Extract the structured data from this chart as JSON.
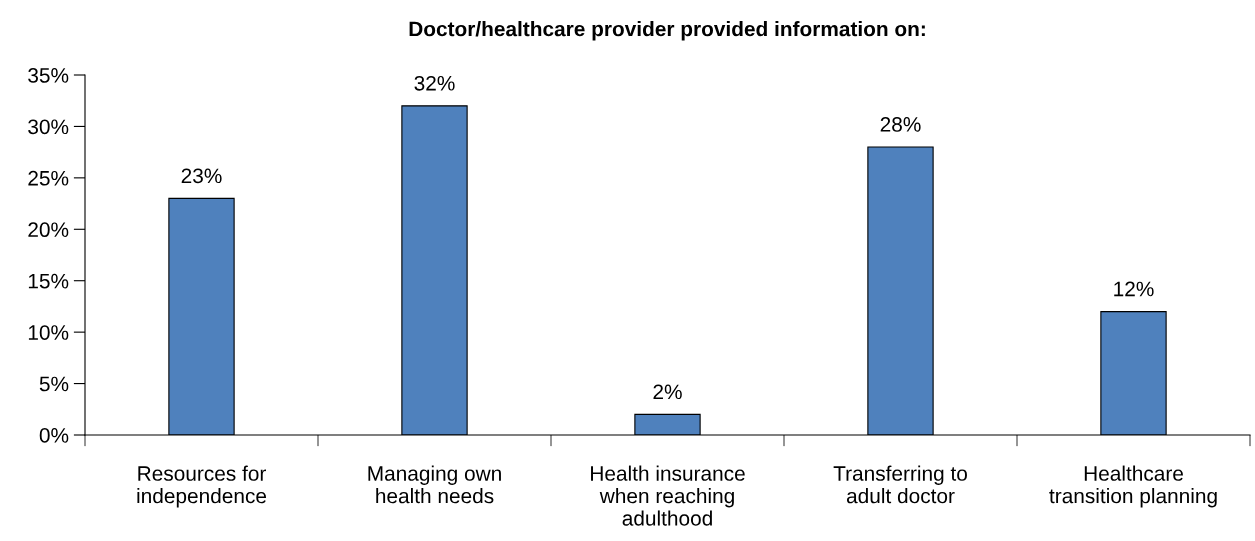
{
  "chart_data": {
    "type": "bar",
    "title": "Doctor/healthcare provider provided information on:",
    "categories": [
      "Resources for\nindependence",
      "Managing own\nhealth needs",
      "Health insurance\nwhen reaching\nadulthood",
      "Transferring to\nadult doctor",
      "Healthcare\ntransition planning"
    ],
    "values": [
      23,
      32,
      2,
      28,
      12
    ],
    "color": "#4f81bd",
    "data_labels": true,
    "value_labels": [
      "23%",
      "32%",
      "2%",
      "28%",
      "12%"
    ],
    "ylim": [
      0,
      35
    ],
    "yticks": [
      {
        "value": 0,
        "label": "0%"
      },
      {
        "value": 5,
        "label": "5%"
      },
      {
        "value": 10,
        "label": "10%"
      },
      {
        "value": 15,
        "label": "15%"
      },
      {
        "value": 20,
        "label": "20%"
      },
      {
        "value": 25,
        "label": "25%"
      },
      {
        "value": 30,
        "label": "30%"
      },
      {
        "value": 35,
        "label": "35%"
      }
    ],
    "grid": false,
    "legend": false
  }
}
